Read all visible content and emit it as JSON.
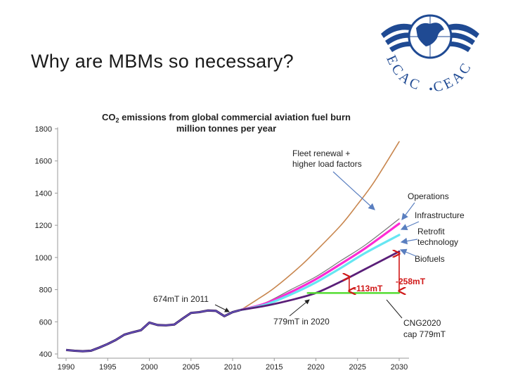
{
  "slide": {
    "title": "Why are MBMs so necessary?"
  },
  "logo": {
    "text_left": "ECAC",
    "separator": "•",
    "text_right": "CEAC",
    "color": "#1f4a93",
    "icon": "wings-globe-emblem"
  },
  "chart_data": {
    "type": "line",
    "title_line1_prefix": "CO",
    "title_line1_sub": "2",
    "title_line1_suffix": " emissions from global commercial aviation fuel burn",
    "title_line2": "million tonnes per year",
    "x_ticks": [
      "1990",
      "1995",
      "2000",
      "2005",
      "2010",
      "2015",
      "2020",
      "2025",
      "2030"
    ],
    "y_ticks": [
      "400",
      "600",
      "800",
      "1000",
      "1200",
      "1400",
      "1600",
      "1800"
    ],
    "xlim": [
      1990,
      2030
    ],
    "ylim": [
      400,
      1800
    ],
    "grid": false,
    "historical": {
      "color": "#6a5acd",
      "points": [
        [
          1990,
          425
        ],
        [
          1991,
          420
        ],
        [
          1992,
          417
        ],
        [
          1993,
          420
        ],
        [
          1994,
          440
        ],
        [
          1995,
          462
        ],
        [
          1996,
          488
        ],
        [
          1997,
          520
        ],
        [
          1998,
          535
        ],
        [
          1999,
          548
        ],
        [
          2000,
          595
        ],
        [
          2001,
          580
        ],
        [
          2002,
          578
        ],
        [
          2003,
          583
        ],
        [
          2004,
          620
        ],
        [
          2005,
          655
        ],
        [
          2006,
          660
        ],
        [
          2007,
          670
        ],
        [
          2008,
          668
        ],
        [
          2009,
          635
        ],
        [
          2010,
          660
        ],
        [
          2011,
          674
        ]
      ]
    },
    "series": [
      {
        "name": "Fleet renewal + higher load factors",
        "color": "#c8864e",
        "width": 1.6,
        "points": [
          [
            2011,
            674
          ],
          [
            2013,
            740
          ],
          [
            2015,
            810
          ],
          [
            2018,
            940
          ],
          [
            2020,
            1040
          ],
          [
            2023,
            1200
          ],
          [
            2025,
            1330
          ],
          [
            2027,
            1470
          ],
          [
            2030,
            1720
          ]
        ]
      },
      {
        "name": "Operations",
        "color": "#777777",
        "width": 1.2,
        "points": [
          [
            2011,
            674
          ],
          [
            2014,
            720
          ],
          [
            2017,
            800
          ],
          [
            2020,
            880
          ],
          [
            2023,
            980
          ],
          [
            2026,
            1080
          ],
          [
            2030,
            1240
          ]
        ]
      },
      {
        "name": "Infrastructure",
        "color": "#ff2ad4",
        "width": 3.2,
        "points": [
          [
            2011,
            674
          ],
          [
            2014,
            715
          ],
          [
            2017,
            785
          ],
          [
            2020,
            865
          ],
          [
            2023,
            960
          ],
          [
            2026,
            1060
          ],
          [
            2030,
            1210
          ]
        ]
      },
      {
        "name": "Retrofit technology",
        "color": "#66e6f2",
        "width": 3.2,
        "points": [
          [
            2011,
            674
          ],
          [
            2014,
            708
          ],
          [
            2017,
            770
          ],
          [
            2020,
            845
          ],
          [
            2023,
            935
          ],
          [
            2026,
            1030
          ],
          [
            2030,
            1140
          ]
        ]
      },
      {
        "name": "Biofuels",
        "color": "#5a1e78",
        "width": 2.8,
        "points": [
          [
            2011,
            674
          ],
          [
            2014,
            700
          ],
          [
            2017,
            735
          ],
          [
            2020,
            779
          ],
          [
            2023,
            850
          ],
          [
            2026,
            930
          ],
          [
            2030,
            1037
          ]
        ]
      },
      {
        "name": "CNG2020 cap 779mT",
        "color": "#55dd33",
        "width": 2.4,
        "points": [
          [
            2019,
            779
          ],
          [
            2030,
            779
          ]
        ]
      }
    ],
    "annotations": {
      "fleet_renewal_line1": "Fleet renewal +",
      "fleet_renewal_line2": "higher load factors",
      "operations": "Operations",
      "infrastructure": "Infrastructure",
      "retrofit_line1": "Retrofit",
      "retrofit_line2": "technology",
      "biofuels": "Biofuels",
      "mt_2011": "674mT in 2011",
      "mt_2020": "779mT in 2020",
      "gap_113": "-113mT",
      "gap_258": "-258mT",
      "cng_line1": "CNG2020",
      "cng_line2": "cap 779mT"
    },
    "gaps": [
      {
        "label": "-113mT",
        "x": 2024,
        "from": 779,
        "to": 892
      },
      {
        "label": "-258mT",
        "x": 2030,
        "from": 779,
        "to": 1037
      }
    ],
    "colors": {
      "arrow": "#5a7fc0",
      "gap_marker": "#d01818",
      "axis": "#999999",
      "tick_label": "#222222"
    }
  }
}
